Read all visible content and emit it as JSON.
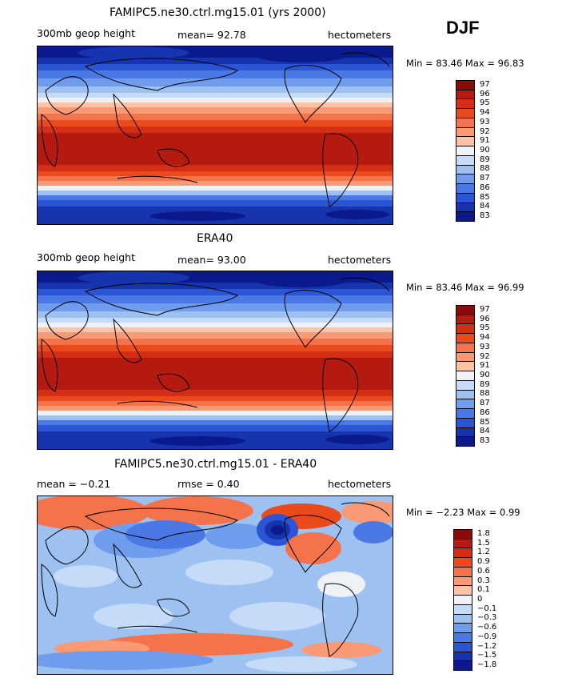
{
  "season_label": "DJF",
  "panels": [
    {
      "title": "FAMIPC5.ne30.ctrl.mg15.01 (yrs 2000)",
      "left_label": "300mb geop height",
      "center_label": "mean=   92.78",
      "units": "hectometers",
      "minmax": "Min =   83.46  Max =   96.83",
      "colorbar": {
        "labels": [
          "97",
          "96",
          "95",
          "94",
          "93",
          "92",
          "91",
          "90",
          "89",
          "88",
          "87",
          "86",
          "85",
          "84",
          "83"
        ],
        "colors": [
          "#8b0a0a",
          "#b51a10",
          "#d42e14",
          "#ea4a1c",
          "#f4734a",
          "#f99a74",
          "#fcc3a6",
          "#eef2f7",
          "#c6dbf7",
          "#9dc2f2",
          "#6f9ced",
          "#4a79e6",
          "#2c55d6",
          "#1634ad",
          "#0a1a8c"
        ]
      },
      "field_type": "height"
    },
    {
      "title": "ERA40",
      "left_label": "300mb geop height",
      "center_label": "mean=   93.00",
      "units": "hectometers",
      "minmax": "Min =   83.46  Max =   96.99",
      "colorbar": {
        "labels": [
          "97",
          "96",
          "95",
          "94",
          "93",
          "92",
          "91",
          "90",
          "89",
          "88",
          "87",
          "86",
          "85",
          "84",
          "83"
        ],
        "colors": [
          "#8b0a0a",
          "#b51a10",
          "#d42e14",
          "#ea4a1c",
          "#f4734a",
          "#f99a74",
          "#fcc3a6",
          "#eef2f7",
          "#c6dbf7",
          "#9dc2f2",
          "#6f9ced",
          "#4a79e6",
          "#2c55d6",
          "#1634ad",
          "#0a1a8c"
        ]
      },
      "field_type": "height"
    },
    {
      "title": "FAMIPC5.ne30.ctrl.mg15.01 - ERA40",
      "left_label": "mean =   −0.21",
      "center_label": "rmse =     0.40",
      "units": "hectometers",
      "minmax": "Min =   −2.23  Max =     0.99",
      "colorbar": {
        "labels": [
          "1.8",
          "1.5",
          "1.2",
          "0.9",
          "0.6",
          "0.3",
          "0.1",
          "0",
          "−0.1",
          "−0.3",
          "−0.6",
          "−0.9",
          "−1.2",
          "−1.5",
          "−1.8"
        ],
        "colors": [
          "#8b0a0a",
          "#b51a10",
          "#d42e14",
          "#ea4a1c",
          "#f4734a",
          "#f99a74",
          "#fcc3a6",
          "#eef2f7",
          "#c6dbf7",
          "#9dc2f2",
          "#6f9ced",
          "#4a79e6",
          "#2c55d6",
          "#1634ad",
          "#0a1a8c"
        ]
      },
      "field_type": "difference"
    }
  ]
}
